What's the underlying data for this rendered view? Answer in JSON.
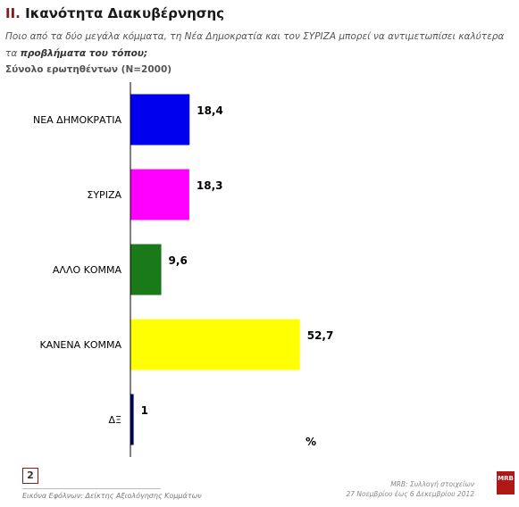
{
  "header": {
    "section_number": "II.",
    "title": "Ικανότητα Διακυβέρνησης",
    "question_line1": "Ποιο από τα δύο μεγάλα κόμματα, τη Νέα Δημοκρατία και τον ΣΥΡΙΖΑ μπορεί να αντιμετωπίσει καλύτερα",
    "question_line2_prefix": "τα ",
    "question_line2_bold": "προβλήματα του τόπου;",
    "base": "Σύνολο ερωτηθέντων (N=2000)"
  },
  "chart_data": {
    "type": "bar",
    "orientation": "horizontal",
    "categories": [
      "ΝΕΑ ΔΗΜΟΚΡΑΤΙΑ",
      "ΣΥΡΙΖΑ",
      "ΑΛΛΟ ΚΟΜΜΑ",
      "ΚΑΝΕΝΑ ΚΟΜΜΑ",
      "ΔΞ"
    ],
    "values": [
      18.4,
      18.3,
      9.6,
      52.7,
      1
    ],
    "value_labels": [
      "18,4",
      "18,3",
      "9,6",
      "52,7",
      "1"
    ],
    "colors": [
      "#0000ee",
      "#ff00ff",
      "#1a7a1a",
      "#ffff00",
      "#000066"
    ],
    "xlim": [
      0,
      100
    ],
    "unit_label": "%",
    "grid": false
  },
  "footer": {
    "page_number": "2",
    "left_text": "Εικόνα Εφόλνων: Δείκτης Αξιολόγησης Κομμάτων",
    "right_line1": "MRB: Συλλογή στοιχείων",
    "right_line2": "27 Νοεμβρίου έως 6 Δεκεμβρίου 2012",
    "logo_text": "MRB"
  }
}
